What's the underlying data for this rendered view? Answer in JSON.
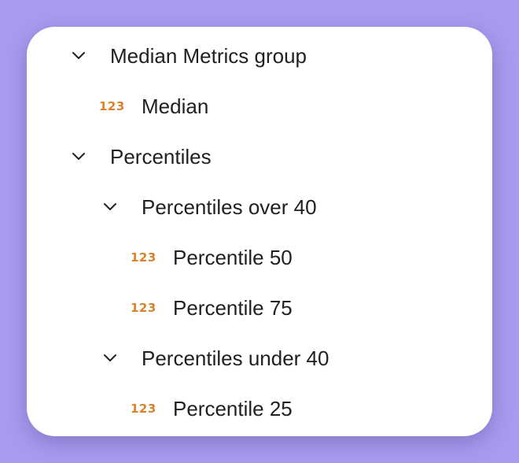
{
  "tree": {
    "nodes": [
      {
        "label": "Median Metrics group",
        "kind": "group",
        "expanded": true,
        "depth": 0
      },
      {
        "label": "Median",
        "kind": "metric",
        "icon": "123",
        "depth": 1
      },
      {
        "label": "Percentiles",
        "kind": "group",
        "expanded": true,
        "depth": 0
      },
      {
        "label": "Percentiles over 40",
        "kind": "group",
        "expanded": true,
        "depth": 1
      },
      {
        "label": "Percentile 50",
        "kind": "metric",
        "icon": "123",
        "depth": 2
      },
      {
        "label": "Percentile 75",
        "kind": "metric",
        "icon": "123",
        "depth": 2
      },
      {
        "label": "Percentiles under 40",
        "kind": "group",
        "expanded": true,
        "depth": 1
      },
      {
        "label": "Percentile 25",
        "kind": "metric",
        "icon": "123",
        "depth": 2
      }
    ]
  },
  "colors": {
    "background": "#a99cf0",
    "card": "#ffffff",
    "metric_icon": "#d9822b",
    "text": "#1f1f24"
  },
  "icons": {
    "chevron": "chevron-down-icon",
    "metric": "number-type-icon"
  }
}
